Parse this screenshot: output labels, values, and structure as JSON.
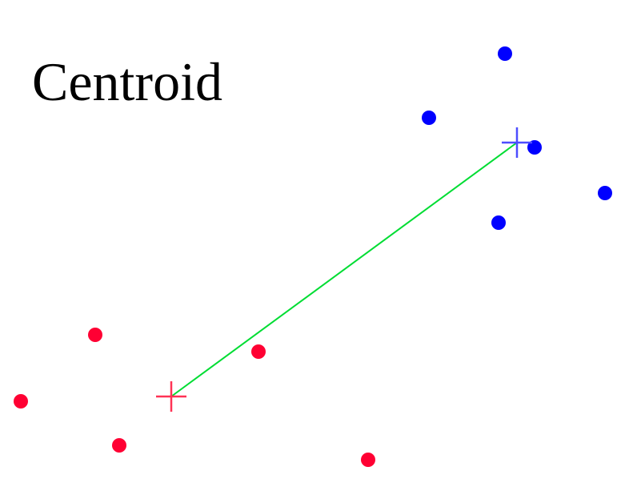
{
  "title": "Centroid",
  "colors": {
    "cluster_a": "#0000ff",
    "cluster_b": "#ff0033",
    "centroid_a": "#4d4dff",
    "centroid_b": "#ff3355",
    "link": "#00dd33",
    "background": "#ffffff"
  },
  "clusters": [
    {
      "name": "cluster-blue",
      "color_key": "cluster_a",
      "centroid_color_key": "centroid_a",
      "points": [
        [
          631,
          67
        ],
        [
          536,
          147
        ],
        [
          668,
          184
        ],
        [
          756,
          241
        ],
        [
          623,
          278
        ]
      ],
      "centroid": [
        646,
        178
      ]
    },
    {
      "name": "cluster-red",
      "color_key": "cluster_b",
      "centroid_color_key": "centroid_b",
      "points": [
        [
          119,
          418
        ],
        [
          323,
          439
        ],
        [
          26,
          501
        ],
        [
          149,
          556
        ],
        [
          460,
          574
        ]
      ],
      "centroid": [
        214,
        495
      ]
    }
  ]
}
